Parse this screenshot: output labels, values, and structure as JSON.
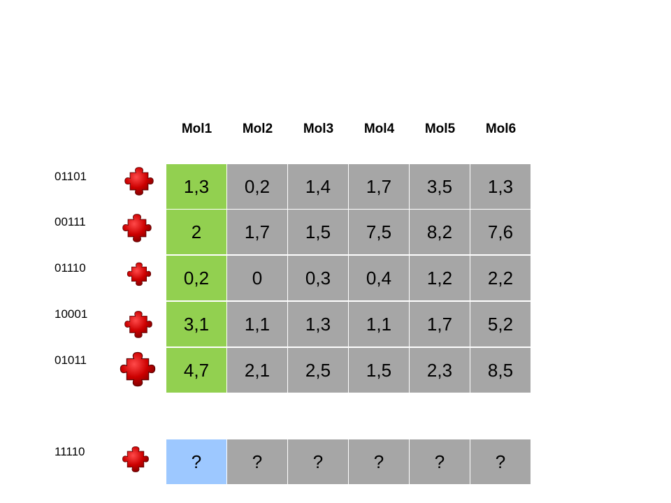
{
  "columns": [
    "Mol1",
    "Mol2",
    "Mol3",
    "Mol4",
    "Mol5",
    "Mol6"
  ],
  "rows": [
    {
      "code": "01101",
      "values": [
        "1,3",
        "0,2",
        "1,4",
        "1,7",
        "3,5",
        "1,3"
      ]
    },
    {
      "code": "00111",
      "values": [
        "2",
        "1,7",
        "1,5",
        "7,5",
        "8,2",
        "7,6"
      ]
    },
    {
      "code": "01110",
      "values": [
        "0,2",
        "0",
        "0,3",
        "0,4",
        "1,2",
        "2,2"
      ]
    },
    {
      "code": "10001",
      "values": [
        "3,1",
        "1,1",
        "1,3",
        "1,1",
        "1,7",
        "5,2"
      ]
    },
    {
      "code": "01011",
      "values": [
        "4,7",
        "2,1",
        "2,5",
        "1,5",
        "2,3",
        "8,5"
      ]
    }
  ],
  "query_row": {
    "code": "11110",
    "values": [
      "?",
      "?",
      "?",
      "?",
      "?",
      "?"
    ]
  },
  "colors": {
    "known_first_column": "#92d050",
    "query_first_column": "#9dc8ff",
    "cell": "#a6a6a6",
    "puzzle_piece": "#cc0000"
  },
  "icons": {
    "row_marker": "puzzle-piece-icon"
  }
}
